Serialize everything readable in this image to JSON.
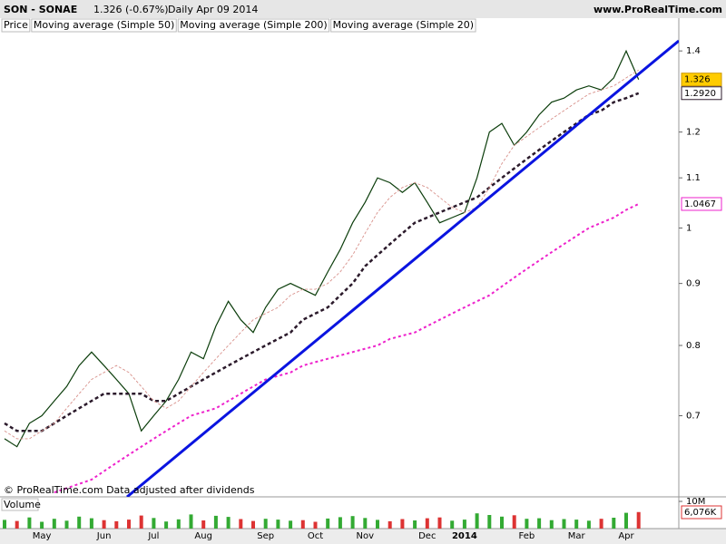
{
  "chart_data": {
    "type": "line",
    "title": "SON - SONAE",
    "quote": "1.326 (-0.67%)",
    "period": "Daily  Apr 09 2014",
    "source": "www.ProRealTime.com",
    "footer": "© ProRealTime.com  Data adjusted after dividends",
    "log_scale": true,
    "categories": [
      null,
      null,
      null,
      "May",
      null,
      null,
      null,
      null,
      "Jun",
      null,
      null,
      null,
      "Jul",
      null,
      null,
      null,
      "Aug",
      null,
      null,
      null,
      null,
      "Sep",
      null,
      null,
      null,
      "Oct",
      null,
      null,
      null,
      "Nov",
      null,
      null,
      null,
      null,
      "Dec",
      null,
      null,
      "2014",
      null,
      null,
      null,
      null,
      "Feb",
      null,
      null,
      null,
      "Mar",
      null,
      null,
      null,
      "Apr",
      null
    ],
    "series": [
      {
        "name": "Price",
        "color": "#0b3d0b",
        "values": [
          0.67,
          0.66,
          0.69,
          0.7,
          0.72,
          0.74,
          0.77,
          0.79,
          0.77,
          0.75,
          0.73,
          0.68,
          0.7,
          0.72,
          0.75,
          0.79,
          0.78,
          0.83,
          0.87,
          0.84,
          0.82,
          0.86,
          0.89,
          0.9,
          0.89,
          0.88,
          0.92,
          0.96,
          1.01,
          1.05,
          1.1,
          1.09,
          1.07,
          1.09,
          1.05,
          1.01,
          1.02,
          1.03,
          1.1,
          1.2,
          1.22,
          1.17,
          1.2,
          1.24,
          1.27,
          1.28,
          1.3,
          1.31,
          1.3,
          1.33,
          1.4,
          1.326
        ]
      },
      {
        "name": "Moving average (Simple 50)",
        "color": "#2b1a2b",
        "values": [
          0.69,
          0.68,
          0.68,
          0.68,
          0.69,
          0.7,
          0.71,
          0.72,
          0.73,
          0.73,
          0.73,
          0.73,
          0.72,
          0.72,
          0.73,
          0.74,
          0.75,
          0.76,
          0.77,
          0.78,
          0.79,
          0.8,
          0.81,
          0.82,
          0.84,
          0.85,
          0.86,
          0.88,
          0.9,
          0.93,
          0.95,
          0.97,
          0.99,
          1.01,
          1.02,
          1.03,
          1.04,
          1.05,
          1.06,
          1.08,
          1.1,
          1.12,
          1.14,
          1.16,
          1.18,
          1.2,
          1.22,
          1.24,
          1.25,
          1.27,
          1.28,
          1.292
        ],
        "value_labels": [
          null,
          null,
          null,
          null,
          null,
          null,
          null,
          null,
          null,
          null,
          null,
          null,
          null,
          null,
          null,
          null,
          null,
          null,
          null,
          null,
          null,
          null,
          null,
          null,
          null,
          null,
          null,
          null,
          null,
          null,
          null,
          null,
          null,
          null,
          null,
          null,
          null,
          null,
          null,
          null,
          null,
          null,
          null,
          null,
          null,
          null,
          null,
          null,
          null,
          null,
          null,
          "1.2920"
        ]
      },
      {
        "name": "Moving average (Simple 200)",
        "color": "#ee22cc",
        "values": [
          null,
          null,
          null,
          null,
          0.605,
          0.61,
          0.615,
          0.62,
          0.63,
          0.64,
          0.65,
          0.66,
          0.67,
          0.68,
          0.69,
          0.7,
          0.705,
          0.71,
          0.72,
          0.73,
          0.74,
          0.75,
          0.755,
          0.76,
          0.77,
          0.775,
          0.78,
          0.785,
          0.79,
          0.795,
          0.8,
          0.81,
          0.815,
          0.82,
          0.83,
          0.84,
          0.85,
          0.86,
          0.87,
          0.88,
          0.895,
          0.91,
          0.925,
          0.94,
          0.955,
          0.97,
          0.985,
          1.0,
          1.01,
          1.02,
          1.035,
          1.0467
        ]
      },
      {
        "name": "Moving average (Simple 20)",
        "color": "#d8908a",
        "values": [
          0.68,
          0.67,
          0.67,
          0.68,
          0.69,
          0.71,
          0.73,
          0.75,
          0.76,
          0.77,
          0.76,
          0.74,
          0.72,
          0.71,
          0.72,
          0.74,
          0.76,
          0.78,
          0.8,
          0.82,
          0.84,
          0.85,
          0.86,
          0.88,
          0.89,
          0.89,
          0.9,
          0.92,
          0.95,
          0.99,
          1.03,
          1.06,
          1.08,
          1.09,
          1.08,
          1.06,
          1.04,
          1.03,
          1.04,
          1.08,
          1.13,
          1.17,
          1.19,
          1.21,
          1.23,
          1.25,
          1.27,
          1.29,
          1.3,
          1.31,
          1.33,
          1.35
        ]
      }
    ],
    "ylim": [
      0.6,
      1.49
    ],
    "yticks": [
      0.7,
      0.8,
      0.9,
      1,
      1.1,
      1.2,
      1.4
    ],
    "volume": {
      "name": "Volume",
      "color_up": "#33aa33",
      "color_down": "#dd3333",
      "values": [
        3200000,
        2800000,
        4100000,
        2500000,
        3600000,
        2900000,
        4400000,
        3800000,
        3100000,
        2700000,
        3300000,
        4800000,
        3900000,
        2600000,
        3400000,
        5200000,
        3000000,
        4700000,
        4300000,
        3500000,
        2800000,
        3600000,
        3300000,
        2900000,
        3100000,
        2500000,
        3700000,
        4200000,
        4600000,
        3900000,
        3200000,
        2700000,
        3500000,
        3000000,
        3800000,
        4100000,
        2900000,
        3300000,
        5600000,
        5000000,
        4400000,
        4900000,
        3600000,
        3800000,
        3100000,
        3500000,
        3300000,
        2900000,
        3600000,
        4000000,
        5800000,
        6076000
      ],
      "value_labels": [
        null,
        null,
        null,
        null,
        null,
        null,
        null,
        null,
        null,
        null,
        null,
        null,
        null,
        null,
        null,
        null,
        null,
        null,
        null,
        null,
        null,
        null,
        null,
        null,
        null,
        null,
        null,
        null,
        null,
        null,
        null,
        null,
        null,
        null,
        null,
        null,
        null,
        null,
        null,
        null,
        null,
        null,
        null,
        null,
        null,
        null,
        null,
        null,
        null,
        null,
        null,
        "6,076K"
      ],
      "ylim": [
        0,
        10000000
      ],
      "yticks": [
        {
          "value": 10000000,
          "label": "10M"
        }
      ]
    }
  }
}
